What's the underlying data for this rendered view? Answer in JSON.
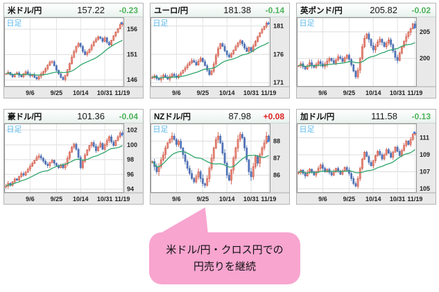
{
  "colors": {
    "up_fill": "#ec8d7e",
    "up_stroke": "#c2402f",
    "down_fill": "#5577bb",
    "down_stroke": "#3a5fa8",
    "ma": "#2ea56b",
    "change_up": "#e02222",
    "change_down": "#4db35a",
    "timeframe": "#5ab8ec",
    "bubble": "#f8a5d0",
    "last_price_marker": "#4a7fd4"
  },
  "bubble": {
    "line1": "米ドル/円・クロス円での",
    "line2": "円売りを継続"
  },
  "chart_data": [
    {
      "type": "candlestick",
      "pair": "米ドル/円",
      "value": "157.22",
      "change": "-0.23",
      "timeframe_label": "日足",
      "x_ticks": [
        "9/6",
        "9/25",
        "10/14",
        "10/31",
        "11/19"
      ],
      "x_tick_indices": [
        11,
        23,
        34,
        45,
        53
      ],
      "y_ticks": [
        146,
        151,
        156
      ],
      "y_min": 144.8,
      "y_max": 158.2,
      "wick_scale": 0.4,
      "ma_window": 20,
      "closes": [
        147.2,
        147.5,
        147.0,
        146.6,
        147.1,
        147.4,
        146.9,
        146.6,
        147.2,
        147.6,
        147.1,
        146.8,
        147.0,
        146.5,
        146.2,
        146.7,
        147.2,
        147.6,
        148.2,
        148.9,
        149.5,
        149.6,
        148.8,
        147.9,
        147.2,
        146.5,
        146.1,
        146.9,
        148.0,
        149.2,
        150.5,
        151.6,
        152.6,
        153.2,
        152.6,
        151.6,
        151.0,
        151.4,
        152.0,
        152.8,
        153.5,
        154.0,
        154.5,
        154.2,
        153.6,
        154.3,
        153.4,
        152.9,
        153.8,
        154.7,
        155.4,
        156.1,
        156.9,
        157.2
      ]
    },
    {
      "type": "candlestick",
      "pair": "ユーロ/円",
      "value": "181.38",
      "change": "-0.14",
      "timeframe_label": "日足",
      "x_ticks": [
        "9/6",
        "9/25",
        "10/14",
        "10/31",
        "11/19"
      ],
      "x_tick_indices": [
        11,
        23,
        34,
        45,
        53
      ],
      "y_ticks": [
        171,
        176,
        181
      ],
      "y_min": 170.4,
      "y_max": 182.4,
      "wick_scale": 0.38,
      "ma_window": 20,
      "closes": [
        171.9,
        172.2,
        171.7,
        171.5,
        171.9,
        172.3,
        172.0,
        171.6,
        172.1,
        172.5,
        172.2,
        171.9,
        172.3,
        172.7,
        173.2,
        173.6,
        174.1,
        174.5,
        174.9,
        174.6,
        174.1,
        174.8,
        175.3,
        174.7,
        174.0,
        173.2,
        172.4,
        173.0,
        174.3,
        175.8,
        177.0,
        177.9,
        177.4,
        176.6,
        175.9,
        175.5,
        176.1,
        176.7,
        177.4,
        178.0,
        178.4,
        177.8,
        177.1,
        176.5,
        177.2,
        176.6,
        177.5,
        178.3,
        179.1,
        179.8,
        180.4,
        180.9,
        181.5,
        181.4
      ]
    },
    {
      "type": "candlestick",
      "pair": "英ポンド/円",
      "value": "205.82",
      "change": "-0.02",
      "timeframe_label": "日足",
      "x_ticks": [
        "9/6",
        "9/25",
        "10/14",
        "10/31",
        "11/19"
      ],
      "x_tick_indices": [
        11,
        23,
        34,
        45,
        53
      ],
      "y_ticks": [
        200,
        205
      ],
      "y_min": 194.8,
      "y_max": 207.6,
      "wick_scale": 0.55,
      "ma_window": 20,
      "closes": [
        198.6,
        199.0,
        198.4,
        198.0,
        198.6,
        199.2,
        198.7,
        198.3,
        198.9,
        199.4,
        199.0,
        198.5,
        198.9,
        199.5,
        200.0,
        199.6,
        199.1,
        199.7,
        200.3,
        200.0,
        199.4,
        200.1,
        200.6,
        199.8,
        198.8,
        197.6,
        196.5,
        197.8,
        200.0,
        202.2,
        203.8,
        204.6,
        203.6,
        202.4,
        201.6,
        202.3,
        203.1,
        203.6,
        203.0,
        202.2,
        202.9,
        203.5,
        202.6,
        201.4,
        200.2,
        199.6,
        201.0,
        202.2,
        203.2,
        204.1,
        204.9,
        205.6,
        206.5,
        205.8
      ]
    },
    {
      "type": "candlestick",
      "pair": "豪ドル/円",
      "value": "101.36",
      "change": "-0.04",
      "timeframe_label": "日足",
      "x_ticks": [
        "9/6",
        "9/25",
        "10/14",
        "10/31",
        "11/19"
      ],
      "x_tick_indices": [
        11,
        23,
        34,
        45,
        53
      ],
      "y_ticks": [
        94,
        96,
        98,
        100,
        102
      ],
      "y_min": 93.6,
      "y_max": 102.8,
      "wick_scale": 0.3,
      "ma_window": 20,
      "closes": [
        94.4,
        94.8,
        94.5,
        95.0,
        95.4,
        95.2,
        95.7,
        96.1,
        95.9,
        96.3,
        96.7,
        97.1,
        97.5,
        97.9,
        98.3,
        98.5,
        98.2,
        97.8,
        97.4,
        97.2,
        97.6,
        97.9,
        97.5,
        97.2,
        96.9,
        97.3,
        96.9,
        97.4,
        98.2,
        99.0,
        99.7,
        100.1,
        99.4,
        98.3,
        96.9,
        97.8,
        98.6,
        99.3,
        99.9,
        100.3,
        99.8,
        99.2,
        99.7,
        100.2,
        99.4,
        100.0,
        100.6,
        101.1,
        100.4,
        99.9,
        100.6,
        101.1,
        101.6,
        101.4
      ]
    },
    {
      "type": "candlestick",
      "pair": "NZドル/円",
      "value": "87.98",
      "change": "+0.08",
      "timeframe_label": "日足",
      "x_ticks": [
        "9/6",
        "9/25",
        "10/14",
        "10/31",
        "11/19"
      ],
      "x_tick_indices": [
        11,
        23,
        34,
        45,
        53
      ],
      "y_ticks": [
        86,
        87,
        88
      ],
      "y_min": 85.0,
      "y_max": 89.0,
      "wick_scale": 0.22,
      "ma_window": 20,
      "closes": [
        86.8,
        86.5,
        86.2,
        86.5,
        86.9,
        87.2,
        87.6,
        87.9,
        88.1,
        88.3,
        88.1,
        87.8,
        88.0,
        87.6,
        87.2,
        86.8,
        86.4,
        86.1,
        85.8,
        85.6,
        85.9,
        86.2,
        85.8,
        85.5,
        85.4,
        85.8,
        86.4,
        87.0,
        87.6,
        88.1,
        88.3,
        87.9,
        87.3,
        86.7,
        86.0,
        85.7,
        86.3,
        87.0,
        87.6,
        88.1,
        88.4,
        88.2,
        87.6,
        86.9,
        86.2,
        85.9,
        86.5,
        87.1,
        86.7,
        87.2,
        87.6,
        87.9,
        88.3,
        88.0
      ]
    },
    {
      "type": "candlestick",
      "pair": "加ドル/円",
      "value": "111.58",
      "change": "-0.13",
      "timeframe_label": "日足",
      "x_ticks": [
        "9/6",
        "9/25",
        "10/14",
        "10/31",
        "11/19"
      ],
      "x_tick_indices": [
        11,
        23,
        34,
        45,
        53
      ],
      "y_ticks": [
        105,
        107,
        109,
        111
      ],
      "y_min": 104.6,
      "y_max": 112.6,
      "wick_scale": 0.28,
      "ma_window": 20,
      "closes": [
        106.9,
        107.2,
        106.8,
        106.5,
        106.9,
        107.3,
        107.0,
        106.6,
        107.0,
        107.4,
        107.8,
        107.4,
        107.0,
        107.3,
        106.9,
        106.6,
        107.0,
        107.4,
        107.1,
        106.7,
        107.1,
        107.5,
        107.2,
        106.8,
        106.2,
        105.6,
        105.3,
        106.2,
        107.4,
        108.5,
        109.3,
        108.8,
        108.1,
        107.7,
        108.3,
        108.9,
        109.4,
        109.0,
        108.5,
        109.0,
        109.6,
        109.2,
        108.7,
        109.3,
        109.9,
        109.4,
        108.9,
        109.5,
        110.1,
        110.6,
        110.2,
        110.8,
        111.4,
        111.6
      ]
    }
  ]
}
